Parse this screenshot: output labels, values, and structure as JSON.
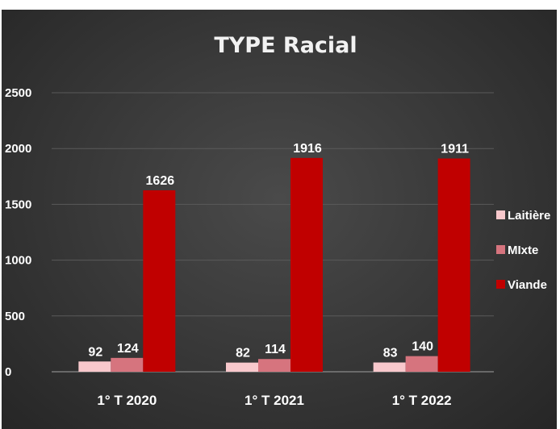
{
  "chart_data": {
    "type": "bar",
    "title": "TYPE Racial",
    "categories": [
      "1° T 2020",
      "1° T 2021",
      "1° T 2022"
    ],
    "series": [
      {
        "name": "Laitière",
        "values": [
          92,
          82,
          83
        ],
        "color": "#f8c8cc"
      },
      {
        "name": "MIxte",
        "values": [
          124,
          114,
          140
        ],
        "color": "#d6747e"
      },
      {
        "name": "Viande",
        "values": [
          1626,
          1916,
          1911
        ],
        "color": "#c00000"
      }
    ],
    "ylim": [
      0,
      2500
    ],
    "yticks": [
      0,
      500,
      1000,
      1500,
      2000,
      2500
    ],
    "grid": true,
    "legend_position": "right",
    "data_labels": true,
    "background": "#3a3a3a",
    "text_color": "#ffffff"
  }
}
